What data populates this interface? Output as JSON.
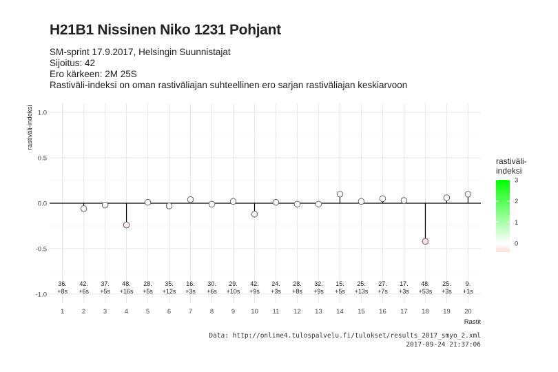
{
  "title": "H21B1 Nissinen Niko 1231 Pohjant",
  "subtitle_lines": [
    "SM-sprint 17.9.2017, Helsingin Suunnistajat",
    "Sijoitus: 42",
    "Ero kärkeen: 2M 25S",
    "Rastiväli-indeksi on oman rastiväliajan suhteellinen ero sarjan rastiväliajan keskiarvoon"
  ],
  "caption": {
    "source": "Data: http://online4.tulospalvelu.fi/tulokset/results_2017_smyo_2.xml",
    "timestamp": "2017-09-24 21:37:06"
  },
  "chart_data": {
    "type": "scatter",
    "style": "lollipop",
    "xlabel": "Rastit",
    "ylabel": "rastiväli-indeksi",
    "ylim": [
      -1.0,
      1.0
    ],
    "yticks": [
      "-1.0",
      "-0.5",
      "0.0",
      "0.5",
      "1.0"
    ],
    "x": [
      1,
      2,
      3,
      4,
      5,
      6,
      7,
      8,
      9,
      10,
      11,
      12,
      13,
      14,
      15,
      16,
      17,
      18,
      19,
      20
    ],
    "y": [
      null,
      -0.06,
      -0.02,
      -0.24,
      0.01,
      -0.03,
      0.04,
      -0.01,
      0.02,
      -0.12,
      0.01,
      -0.01,
      -0.01,
      0.1,
      0.02,
      0.05,
      0.03,
      -0.42,
      0.06,
      0.1
    ],
    "point_labels": [
      [
        "36.",
        "+8s"
      ],
      [
        "42.",
        "+6s"
      ],
      [
        "37.",
        "+5s"
      ],
      [
        "48.",
        "+16s"
      ],
      [
        "28.",
        "+5s"
      ],
      [
        "35.",
        "+12s"
      ],
      [
        "16.",
        "+3s"
      ],
      [
        "30.",
        "+6s"
      ],
      [
        "29.",
        "+10s"
      ],
      [
        "42.",
        "+9s"
      ],
      [
        "24.",
        "+3s"
      ],
      [
        "28.",
        "+8s"
      ],
      [
        "32.",
        "+9s"
      ],
      [
        "15.",
        "+5s"
      ],
      [
        "25.",
        "+13s"
      ],
      [
        "27.",
        "+7s"
      ],
      [
        "17.",
        "+3s"
      ],
      [
        "48.",
        "+53s"
      ],
      [
        "25.",
        "+3s"
      ],
      [
        "9.",
        "+1s"
      ]
    ],
    "grid": true,
    "legend": {
      "title_lines": [
        "rastiväli-",
        "indeksi"
      ],
      "placement": "right",
      "scale_min": -0.42,
      "scale_max": 3,
      "ticks": [
        "0",
        "1",
        "2",
        "3"
      ],
      "colors": {
        "low": "#fde0dd",
        "mid": "#ffffff",
        "high": "#00ff00"
      }
    },
    "colors": {
      "zero_line": "#000000",
      "grid": "#e6e6e6",
      "point_stroke": "#555555"
    }
  }
}
